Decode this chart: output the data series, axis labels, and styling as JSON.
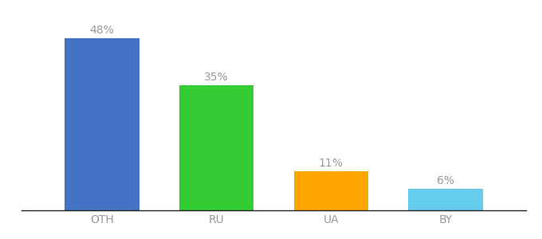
{
  "categories": [
    "OTH",
    "RU",
    "UA",
    "BY"
  ],
  "values": [
    48,
    35,
    11,
    6
  ],
  "labels": [
    "48%",
    "35%",
    "11%",
    "6%"
  ],
  "bar_colors": [
    "#4472C4",
    "#33CC33",
    "#FFA500",
    "#66CCEE"
  ],
  "background_color": "#ffffff",
  "ylim": [
    0,
    54
  ],
  "label_fontsize": 10,
  "tick_fontsize": 10,
  "label_color": "#999999"
}
